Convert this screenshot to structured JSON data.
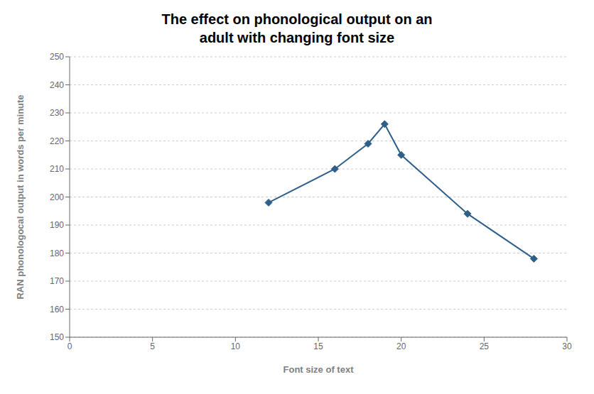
{
  "chart_data": {
    "type": "line",
    "title": "The effect on phonological output on an\nadult with changing font size",
    "xlabel": "Font size of text",
    "ylabel": "RAN phonologocal output in words per minute",
    "x": [
      12,
      16,
      18,
      19,
      20,
      24,
      28
    ],
    "values": [
      198,
      210,
      219,
      226,
      215,
      194,
      178
    ],
    "color": "#2e5f8a",
    "marker": "diamond",
    "xlim": [
      0,
      30
    ],
    "ylim": [
      150,
      250
    ],
    "xticks": [
      0,
      5,
      10,
      15,
      20,
      25,
      30
    ],
    "yticks": [
      150,
      160,
      170,
      180,
      190,
      200,
      210,
      220,
      230,
      240,
      250
    ],
    "grid": "y"
  }
}
